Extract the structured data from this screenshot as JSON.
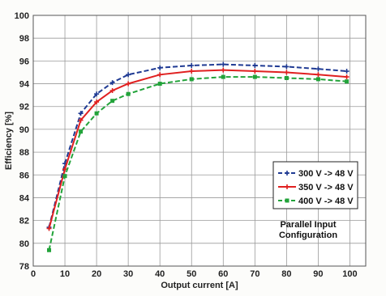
{
  "chart_data": {
    "type": "line",
    "title": "",
    "xlabel": "Output current [A]",
    "ylabel": "Efficiency [%]",
    "xlim": [
      0,
      105
    ],
    "ylim": [
      78,
      100
    ],
    "xticks": [
      0,
      10,
      20,
      30,
      40,
      50,
      60,
      70,
      80,
      90,
      100
    ],
    "yticks": [
      78,
      80,
      82,
      84,
      86,
      88,
      90,
      92,
      94,
      96,
      98,
      100
    ],
    "grid": true,
    "legend_position": "right",
    "annotation": [
      "Parallel Input",
      "Configuration"
    ],
    "series": [
      {
        "name": "300 V -> 48 V",
        "color": "#1f3a93",
        "dash": "dashed",
        "marker": "plus",
        "x": [
          5,
          10,
          15,
          20,
          25,
          30,
          40,
          50,
          60,
          70,
          80,
          90,
          99
        ],
        "y": [
          81.4,
          87.0,
          91.4,
          93.1,
          94.1,
          94.8,
          95.4,
          95.6,
          95.7,
          95.6,
          95.5,
          95.3,
          95.1
        ]
      },
      {
        "name": "350 V -> 48 V",
        "color": "#e02020",
        "dash": "solid",
        "marker": "plus",
        "x": [
          5,
          10,
          15,
          20,
          25,
          30,
          40,
          50,
          60,
          70,
          80,
          90,
          99
        ],
        "y": [
          81.3,
          86.5,
          90.8,
          92.4,
          93.4,
          94.0,
          94.8,
          95.1,
          95.2,
          95.1,
          95.0,
          94.8,
          94.6
        ]
      },
      {
        "name": "400 V -> 48 V",
        "color": "#22a33a",
        "dash": "dashed",
        "marker": "square",
        "x": [
          5,
          10,
          15,
          20,
          25,
          30,
          40,
          50,
          60,
          70,
          80,
          90,
          99
        ],
        "y": [
          79.4,
          85.9,
          89.8,
          91.4,
          92.5,
          93.1,
          94.0,
          94.4,
          94.6,
          94.6,
          94.5,
          94.4,
          94.2
        ]
      }
    ]
  }
}
